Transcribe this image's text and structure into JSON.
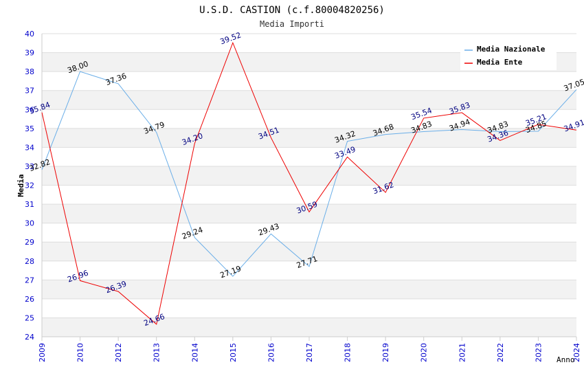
{
  "chart_data": {
    "type": "line",
    "title": "U.S.D. CASTION (c.f.80004820256)",
    "subtitle": "Media Importi",
    "xlabel": "Anno",
    "ylabel": "Media",
    "ylim": [
      24,
      40
    ],
    "yticks": [
      "24",
      "25",
      "26",
      "27",
      "28",
      "29",
      "30",
      "31",
      "32",
      "33",
      "34",
      "35",
      "36",
      "37",
      "38",
      "39",
      "40"
    ],
    "categories": [
      "2009",
      "2010",
      "2012",
      "2013",
      "2014",
      "2015",
      "2016",
      "2017",
      "2018",
      "2019",
      "2020",
      "2021",
      "2022",
      "2023",
      "2024"
    ],
    "series": [
      {
        "name": "Media Nazionale",
        "color": "#6aaee8",
        "label_color": "#000000",
        "values": [
          32.82,
          38.0,
          37.36,
          34.79,
          29.24,
          27.19,
          29.43,
          27.71,
          34.32,
          34.68,
          34.83,
          34.94,
          34.83,
          34.85,
          37.05
        ],
        "labels": [
          "32.82",
          "38.00",
          "37.36",
          "34.79",
          "29.24",
          "27.19",
          "29.43",
          "27.71",
          "34.32",
          "34.68",
          "34.83",
          "34.94",
          "34.83",
          "34.85",
          "37.05"
        ]
      },
      {
        "name": "Media Ente",
        "color": "#ee0000",
        "label_color": "#000080",
        "values": [
          35.84,
          26.96,
          26.39,
          24.66,
          34.2,
          39.52,
          34.51,
          30.59,
          33.49,
          31.62,
          35.54,
          35.83,
          34.36,
          35.21,
          34.91
        ],
        "labels": [
          "35.84",
          "26.96",
          "26.39",
          "24.66",
          "34.20",
          "39.52",
          "34.51",
          "30.59",
          "33.49",
          "31.62",
          "35.54",
          "35.83",
          "34.36",
          "35.21",
          "34.91"
        ]
      }
    ],
    "legend_position": "top-right",
    "grid": true
  }
}
